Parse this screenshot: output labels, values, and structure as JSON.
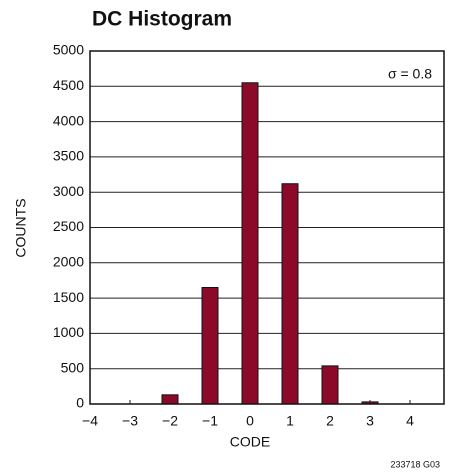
{
  "chart_data": {
    "type": "bar",
    "title": "DC Histogram",
    "x_label": "CODE",
    "y_label": "COUNTS",
    "annotation": "σ = 0.8",
    "footer": "233718 G03",
    "x": [
      -2,
      -1,
      0,
      1,
      2,
      3
    ],
    "values": [
      130,
      1650,
      4550,
      3120,
      540,
      30
    ],
    "color": "#8b0a2a",
    "xlim": [
      -4,
      4.85
    ],
    "xticks": [
      {
        "value": -4,
        "label": "−4"
      },
      {
        "value": -3,
        "label": "−3"
      },
      {
        "value": -2,
        "label": "−2"
      },
      {
        "value": -1,
        "label": "−1"
      },
      0,
      1,
      2,
      3,
      4
    ],
    "ylim": [
      0,
      5000
    ],
    "yticks": [
      0,
      500,
      1000,
      1500,
      2000,
      2500,
      3000,
      3500,
      4000,
      4500,
      5000
    ],
    "grid": true
  }
}
